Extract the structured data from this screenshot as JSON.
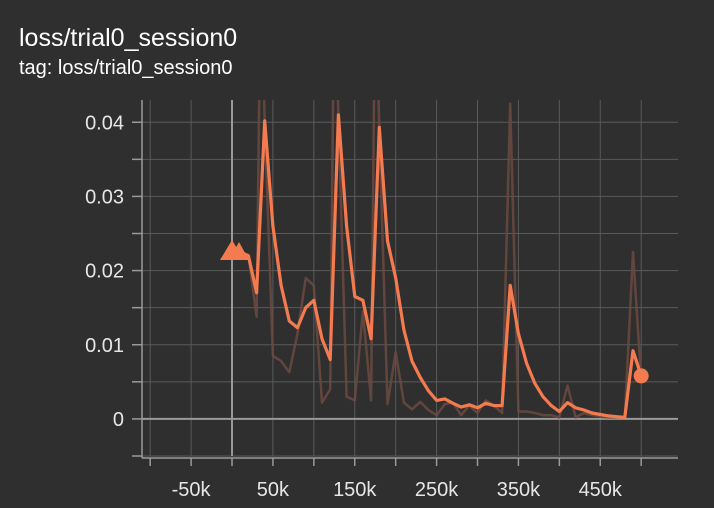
{
  "header": {
    "title": "loss/trial0_session0",
    "tag_line": "tag: loss/trial0_session0"
  },
  "colors": {
    "background": "#2f2f2f",
    "smoothed_line": "#f47b4f",
    "raw_line": "#6b4a40",
    "grid": "#5a5a5a",
    "axis": "#9a9a9a"
  },
  "chart_data": {
    "type": "line",
    "title": "loss/trial0_session0",
    "xlabel": "",
    "ylabel": "",
    "xlim": [
      -110000,
      545000
    ],
    "ylim": [
      -0.005,
      0.043
    ],
    "grid": true,
    "x_ticks": [
      {
        "value": -50000,
        "label": "-50k"
      },
      {
        "value": 50000,
        "label": "50k"
      },
      {
        "value": 150000,
        "label": "150k"
      },
      {
        "value": 250000,
        "label": "250k"
      },
      {
        "value": 350000,
        "label": "350k"
      },
      {
        "value": 450000,
        "label": "450k"
      }
    ],
    "y_ticks": [
      {
        "value": 0,
        "label": "0"
      },
      {
        "value": 0.01,
        "label": "0.01"
      },
      {
        "value": 0.02,
        "label": "0.02"
      },
      {
        "value": 0.03,
        "label": "0.03"
      },
      {
        "value": 0.04,
        "label": "0.04"
      }
    ],
    "series": [
      {
        "role": "smoothed",
        "x": [
          0,
          10000,
          20000,
          30000,
          40000,
          50000,
          60000,
          70000,
          80000,
          90000,
          100000,
          110000,
          120000,
          130000,
          140000,
          150000,
          160000,
          170000,
          180000,
          190000,
          200000,
          210000,
          220000,
          230000,
          240000,
          250000,
          260000,
          270000,
          280000,
          290000,
          300000,
          310000,
          320000,
          330000,
          340000,
          350000,
          360000,
          370000,
          380000,
          390000,
          400000,
          410000,
          420000,
          430000,
          440000,
          450000,
          460000,
          470000,
          480000,
          490000,
          500000
        ],
        "y": [
          0.0225,
          0.0225,
          0.022,
          0.017,
          0.0402,
          0.026,
          0.018,
          0.0132,
          0.0123,
          0.015,
          0.016,
          0.0108,
          0.008,
          0.041,
          0.026,
          0.0165,
          0.016,
          0.0108,
          0.0393,
          0.024,
          0.019,
          0.012,
          0.0078,
          0.0056,
          0.0038,
          0.0025,
          0.0027,
          0.0021,
          0.0016,
          0.0019,
          0.0015,
          0.0021,
          0.0018,
          0.0018,
          0.018,
          0.0115,
          0.0075,
          0.0048,
          0.003,
          0.0018,
          0.001,
          0.0022,
          0.0015,
          0.0012,
          0.0008,
          0.0006,
          0.0004,
          0.0003,
          0.0002,
          0.0092,
          0.0058
        ]
      },
      {
        "role": "raw",
        "x": [
          0,
          10000,
          20000,
          30000,
          35000,
          40000,
          50000,
          60000,
          70000,
          80000,
          90000,
          100000,
          110000,
          120000,
          125000,
          130000,
          140000,
          150000,
          160000,
          170000,
          175000,
          180000,
          190000,
          200000,
          210000,
          220000,
          230000,
          240000,
          250000,
          260000,
          270000,
          280000,
          290000,
          300000,
          310000,
          320000,
          330000,
          340000,
          350000,
          360000,
          370000,
          380000,
          390000,
          400000,
          410000,
          420000,
          430000,
          440000,
          450000,
          460000,
          470000,
          480000,
          490000,
          500000
        ],
        "y": [
          0.0225,
          0.0225,
          0.022,
          0.0138,
          0.06,
          0.04,
          0.0085,
          0.0078,
          0.0063,
          0.0115,
          0.019,
          0.018,
          0.0022,
          0.004,
          0.06,
          0.041,
          0.003,
          0.0025,
          0.0145,
          0.0025,
          0.06,
          0.0393,
          0.002,
          0.009,
          0.0022,
          0.0013,
          0.0023,
          0.0012,
          0.0005,
          0.002,
          0.0022,
          0.0005,
          0.0018,
          0.0008,
          0.0025,
          0.0018,
          0.0008,
          0.0425,
          0.001,
          0.001,
          0.0008,
          0.0005,
          0.0005,
          0.0002,
          0.0045,
          0.0002,
          0.0008,
          0.0005,
          0.0003,
          0.0002,
          0.0002,
          0.0002,
          0.0225,
          0.0052
        ]
      }
    ],
    "markers": {
      "start": {
        "x": 0,
        "y": 0.0225,
        "shape": "triangle"
      },
      "end": {
        "x": 500000,
        "y": 0.0058,
        "shape": "circle"
      }
    },
    "legend": "none"
  }
}
